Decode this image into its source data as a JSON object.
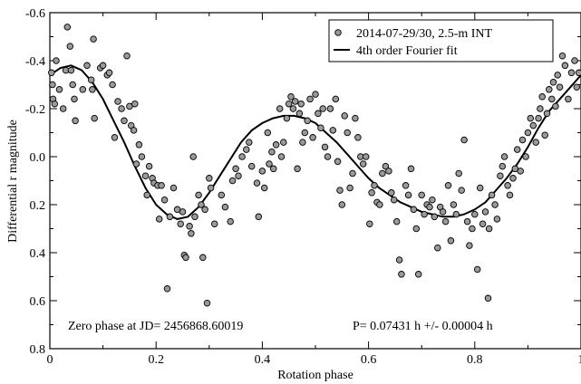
{
  "chart_data": {
    "type": "scatter",
    "xlabel": "Rotation phase",
    "ylabel": "Differential r magnitude",
    "xlim": [
      0,
      1
    ],
    "ylim": [
      0.8,
      -0.6
    ],
    "y_inverted": true,
    "x_ticks": [
      0,
      0.2,
      0.4,
      0.6,
      0.8,
      1
    ],
    "x_tick_labels": [
      "0",
      "0.2",
      "0.4",
      "0.6",
      "0.8",
      "1"
    ],
    "y_ticks": [
      -0.6,
      -0.4,
      -0.2,
      0.0,
      0.2,
      0.4,
      0.6,
      0.8
    ],
    "y_tick_labels": [
      "-0.6",
      "-0.4",
      "-0.2",
      "0.0",
      "0.2",
      "0.4",
      "0.6",
      "0.8"
    ],
    "legend_position": "top-right",
    "grid": false,
    "annotations": {
      "zero_phase": "Zero phase at JD= 2456868.60019",
      "period": "P= 0.07431 h +/- 0.00004 h"
    },
    "series": [
      {
        "name": "2014-07-29/30, 2.5-m INT",
        "kind": "points",
        "marker_color": "#9a9a9a",
        "points": [
          [
            0.003,
            -0.35
          ],
          [
            0.005,
            -0.3
          ],
          [
            0.006,
            -0.24
          ],
          [
            0.009,
            -0.22
          ],
          [
            0.012,
            -0.4
          ],
          [
            0.018,
            -0.28
          ],
          [
            0.025,
            -0.2
          ],
          [
            0.03,
            -0.36
          ],
          [
            0.033,
            -0.54
          ],
          [
            0.038,
            -0.46
          ],
          [
            0.04,
            -0.36
          ],
          [
            0.043,
            -0.3
          ],
          [
            0.046,
            -0.24
          ],
          [
            0.048,
            -0.15
          ],
          [
            0.062,
            -0.28
          ],
          [
            0.07,
            -0.38
          ],
          [
            0.078,
            -0.32
          ],
          [
            0.08,
            -0.28
          ],
          [
            0.082,
            -0.49
          ],
          [
            0.084,
            -0.16
          ],
          [
            0.095,
            -0.37
          ],
          [
            0.1,
            -0.38
          ],
          [
            0.108,
            -0.34
          ],
          [
            0.112,
            -0.35
          ],
          [
            0.118,
            -0.3
          ],
          [
            0.122,
            -0.08
          ],
          [
            0.128,
            -0.23
          ],
          [
            0.135,
            -0.2
          ],
          [
            0.14,
            -0.15
          ],
          [
            0.145,
            -0.42
          ],
          [
            0.15,
            -0.21
          ],
          [
            0.153,
            -0.13
          ],
          [
            0.158,
            -0.11
          ],
          [
            0.16,
            -0.22
          ],
          [
            0.163,
            0.03
          ],
          [
            0.168,
            -0.05
          ],
          [
            0.173,
            0.0
          ],
          [
            0.18,
            0.08
          ],
          [
            0.183,
            0.16
          ],
          [
            0.187,
            0.04
          ],
          [
            0.193,
            0.09
          ],
          [
            0.196,
            0.11
          ],
          [
            0.203,
            0.12
          ],
          [
            0.206,
            0.26
          ],
          [
            0.21,
            0.12
          ],
          [
            0.216,
            0.18
          ],
          [
            0.221,
            0.55
          ],
          [
            0.226,
            0.25
          ],
          [
            0.233,
            0.13
          ],
          [
            0.24,
            0.22
          ],
          [
            0.246,
            0.28
          ],
          [
            0.25,
            0.23
          ],
          [
            0.253,
            0.41
          ],
          [
            0.256,
            0.42
          ],
          [
            0.263,
            0.29
          ],
          [
            0.266,
            0.32
          ],
          [
            0.27,
            0.0
          ],
          [
            0.273,
            0.25
          ],
          [
            0.28,
            0.16
          ],
          [
            0.285,
            0.2
          ],
          [
            0.288,
            0.42
          ],
          [
            0.292,
            0.22
          ],
          [
            0.296,
            0.61
          ],
          [
            0.3,
            0.09
          ],
          [
            0.303,
            0.13
          ],
          [
            0.31,
            0.28
          ],
          [
            0.323,
            0.16
          ],
          [
            0.33,
            0.21
          ],
          [
            0.34,
            0.27
          ],
          [
            0.344,
            0.1
          ],
          [
            0.35,
            0.05
          ],
          [
            0.355,
            0.08
          ],
          [
            0.362,
            0.0
          ],
          [
            0.37,
            -0.03
          ],
          [
            0.375,
            -0.06
          ],
          [
            0.38,
            0.04
          ],
          [
            0.39,
            0.11
          ],
          [
            0.393,
            0.25
          ],
          [
            0.4,
            0.06
          ],
          [
            0.404,
            0.13
          ],
          [
            0.41,
            -0.1
          ],
          [
            0.413,
            0.03
          ],
          [
            0.418,
            -0.02
          ],
          [
            0.421,
            0.05
          ],
          [
            0.426,
            -0.05
          ],
          [
            0.433,
            -0.2
          ],
          [
            0.436,
            0.0
          ],
          [
            0.44,
            -0.06
          ],
          [
            0.446,
            -0.16
          ],
          [
            0.45,
            -0.22
          ],
          [
            0.454,
            -0.25
          ],
          [
            0.458,
            -0.2
          ],
          [
            0.462,
            -0.23
          ],
          [
            0.466,
            0.05
          ],
          [
            0.47,
            -0.18
          ],
          [
            0.473,
            -0.22
          ],
          [
            0.476,
            -0.06
          ],
          [
            0.48,
            -0.1
          ],
          [
            0.485,
            -0.15
          ],
          [
            0.49,
            -0.24
          ],
          [
            0.495,
            -0.08
          ],
          [
            0.5,
            -0.26
          ],
          [
            0.505,
            -0.18
          ],
          [
            0.51,
            -0.12
          ],
          [
            0.514,
            -0.2
          ],
          [
            0.518,
            -0.04
          ],
          [
            0.523,
            0.0
          ],
          [
            0.528,
            -0.2
          ],
          [
            0.533,
            -0.11
          ],
          [
            0.538,
            -0.24
          ],
          [
            0.542,
            0.02
          ],
          [
            0.546,
            0.14
          ],
          [
            0.55,
            0.2
          ],
          [
            0.555,
            -0.17
          ],
          [
            0.56,
            -0.1
          ],
          [
            0.565,
            0.13
          ],
          [
            0.57,
            0.07
          ],
          [
            0.575,
            -0.16
          ],
          [
            0.58,
            -0.08
          ],
          [
            0.585,
            0.0
          ],
          [
            0.59,
            0.03
          ],
          [
            0.595,
            0.0
          ],
          [
            0.602,
            0.28
          ],
          [
            0.606,
            0.15
          ],
          [
            0.611,
            0.12
          ],
          [
            0.616,
            0.19
          ],
          [
            0.621,
            0.2
          ],
          [
            0.626,
            0.07
          ],
          [
            0.632,
            0.04
          ],
          [
            0.638,
            0.06
          ],
          [
            0.643,
            0.15
          ],
          [
            0.648,
            0.18
          ],
          [
            0.653,
            0.27
          ],
          [
            0.658,
            0.43
          ],
          [
            0.662,
            0.49
          ],
          [
            0.67,
            0.12
          ],
          [
            0.675,
            0.16
          ],
          [
            0.68,
            0.05
          ],
          [
            0.685,
            0.22
          ],
          [
            0.69,
            0.3
          ],
          [
            0.694,
            0.49
          ],
          [
            0.7,
            0.16
          ],
          [
            0.705,
            0.24
          ],
          [
            0.71,
            0.2
          ],
          [
            0.715,
            0.21
          ],
          [
            0.72,
            0.18
          ],
          [
            0.724,
            0.25
          ],
          [
            0.73,
            0.38
          ],
          [
            0.735,
            0.21
          ],
          [
            0.74,
            0.23
          ],
          [
            0.745,
            0.27
          ],
          [
            0.75,
            0.12
          ],
          [
            0.755,
            0.35
          ],
          [
            0.76,
            0.2
          ],
          [
            0.765,
            0.24
          ],
          [
            0.77,
            0.07
          ],
          [
            0.775,
            0.14
          ],
          [
            0.78,
            -0.07
          ],
          [
            0.786,
            0.27
          ],
          [
            0.79,
            0.37
          ],
          [
            0.795,
            0.3
          ],
          [
            0.8,
            0.24
          ],
          [
            0.805,
            0.47
          ],
          [
            0.81,
            0.13
          ],
          [
            0.815,
            0.28
          ],
          [
            0.82,
            0.23
          ],
          [
            0.825,
            0.59
          ],
          [
            0.827,
            0.3
          ],
          [
            0.832,
            0.16
          ],
          [
            0.838,
            0.2
          ],
          [
            0.842,
            0.26
          ],
          [
            0.848,
            0.08
          ],
          [
            0.852,
            0.04
          ],
          [
            0.856,
            0.0
          ],
          [
            0.862,
            0.12
          ],
          [
            0.866,
            0.16
          ],
          [
            0.872,
            0.09
          ],
          [
            0.876,
            0.05
          ],
          [
            0.88,
            -0.03
          ],
          [
            0.886,
            0.06
          ],
          [
            0.89,
            -0.07
          ],
          [
            0.896,
            0.0
          ],
          [
            0.9,
            -0.1
          ],
          [
            0.905,
            -0.16
          ],
          [
            0.91,
            -0.13
          ],
          [
            0.915,
            -0.06
          ],
          [
            0.92,
            -0.16
          ],
          [
            0.923,
            -0.2
          ],
          [
            0.927,
            -0.25
          ],
          [
            0.932,
            -0.09
          ],
          [
            0.936,
            -0.18
          ],
          [
            0.94,
            -0.28
          ],
          [
            0.945,
            -0.24
          ],
          [
            0.948,
            -0.31
          ],
          [
            0.952,
            -0.21
          ],
          [
            0.956,
            -0.34
          ],
          [
            0.96,
            -0.29
          ],
          [
            0.965,
            -0.42
          ],
          [
            0.97,
            -0.38
          ],
          [
            0.976,
            -0.24
          ],
          [
            0.982,
            -0.35
          ],
          [
            0.988,
            -0.4
          ],
          [
            0.992,
            -0.29
          ],
          [
            0.996,
            -0.35
          ]
        ]
      },
      {
        "name": "4th order Fourier fit",
        "kind": "line",
        "line_color": "#000000",
        "points": [
          [
            0.0,
            -0.34
          ],
          [
            0.02,
            -0.37
          ],
          [
            0.04,
            -0.38
          ],
          [
            0.06,
            -0.36
          ],
          [
            0.08,
            -0.31
          ],
          [
            0.1,
            -0.24
          ],
          [
            0.12,
            -0.15
          ],
          [
            0.14,
            -0.06
          ],
          [
            0.16,
            0.04
          ],
          [
            0.18,
            0.13
          ],
          [
            0.2,
            0.2
          ],
          [
            0.22,
            0.24
          ],
          [
            0.24,
            0.26
          ],
          [
            0.26,
            0.25
          ],
          [
            0.28,
            0.21
          ],
          [
            0.3,
            0.15
          ],
          [
            0.32,
            0.08
          ],
          [
            0.34,
            0.01
          ],
          [
            0.36,
            -0.06
          ],
          [
            0.38,
            -0.11
          ],
          [
            0.4,
            -0.14
          ],
          [
            0.42,
            -0.16
          ],
          [
            0.44,
            -0.17
          ],
          [
            0.46,
            -0.17
          ],
          [
            0.48,
            -0.16
          ],
          [
            0.5,
            -0.14
          ],
          [
            0.52,
            -0.1
          ],
          [
            0.54,
            -0.06
          ],
          [
            0.56,
            -0.01
          ],
          [
            0.58,
            0.04
          ],
          [
            0.6,
            0.09
          ],
          [
            0.62,
            0.13
          ],
          [
            0.64,
            0.16
          ],
          [
            0.66,
            0.19
          ],
          [
            0.68,
            0.21
          ],
          [
            0.7,
            0.23
          ],
          [
            0.72,
            0.24
          ],
          [
            0.74,
            0.25
          ],
          [
            0.76,
            0.25
          ],
          [
            0.78,
            0.24
          ],
          [
            0.8,
            0.22
          ],
          [
            0.82,
            0.19
          ],
          [
            0.84,
            0.14
          ],
          [
            0.86,
            0.09
          ],
          [
            0.88,
            0.03
          ],
          [
            0.9,
            -0.04
          ],
          [
            0.92,
            -0.12
          ],
          [
            0.94,
            -0.19
          ],
          [
            0.96,
            -0.24
          ],
          [
            0.98,
            -0.29
          ],
          [
            1.0,
            -0.34
          ]
        ]
      }
    ]
  }
}
